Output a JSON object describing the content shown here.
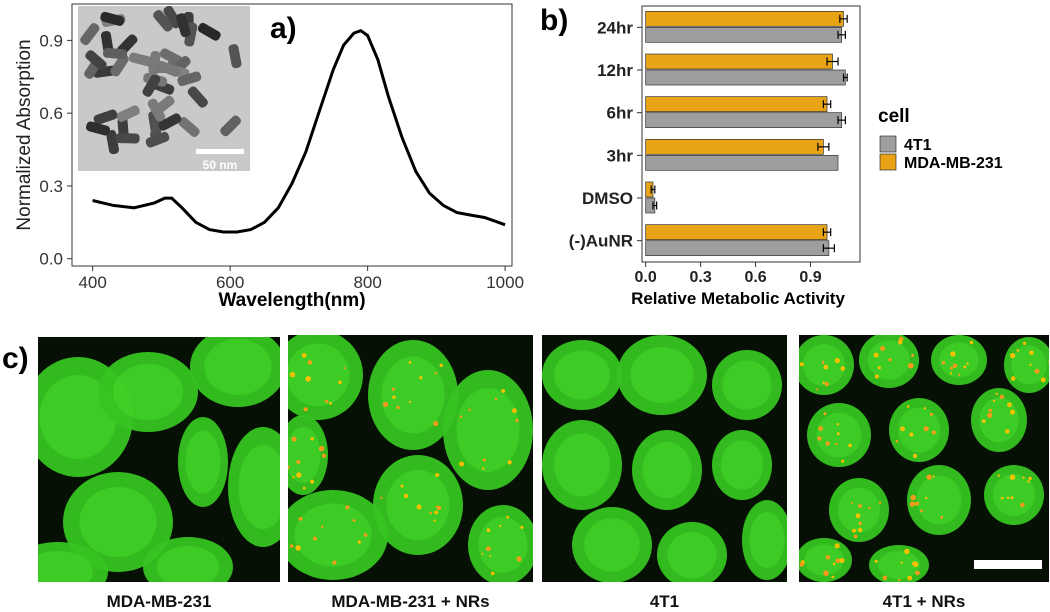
{
  "panel_labels": {
    "a": "a)",
    "b": "b)",
    "c": "c)"
  },
  "inset": {
    "scale_label": "50 nm"
  },
  "captions": [
    "MDA-MB-231",
    "MDA-MB-231 + NRs",
    "4T1",
    "4T1 + NRs"
  ],
  "colors": {
    "line": "#000000",
    "series_4t1": "#9e9e9e",
    "series_mda": "#e8a317",
    "cell_green": "#33cc22",
    "particle": "#ffbb00"
  },
  "chart_data": [
    {
      "type": "line",
      "xlabel": "Wavelength(nm)",
      "ylabel": "Normalized Absorption",
      "xlim": [
        370,
        1010
      ],
      "ylim": [
        -0.03,
        1.05
      ],
      "xticks": [
        400,
        600,
        800,
        1000
      ],
      "yticks": [
        0.0,
        0.3,
        0.6,
        0.9
      ],
      "ytick_labels": [
        "0.0",
        "0.3",
        "0.6",
        "0.9"
      ],
      "x": [
        400,
        430,
        460,
        490,
        505,
        515,
        530,
        550,
        570,
        590,
        610,
        630,
        650,
        670,
        690,
        710,
        730,
        750,
        765,
        780,
        790,
        800,
        815,
        830,
        850,
        870,
        890,
        910,
        930,
        950,
        970,
        990,
        1000
      ],
      "y": [
        0.24,
        0.22,
        0.21,
        0.23,
        0.25,
        0.25,
        0.21,
        0.15,
        0.12,
        0.11,
        0.11,
        0.12,
        0.15,
        0.21,
        0.31,
        0.44,
        0.61,
        0.78,
        0.88,
        0.93,
        0.94,
        0.92,
        0.82,
        0.67,
        0.5,
        0.36,
        0.27,
        0.22,
        0.19,
        0.18,
        0.17,
        0.15,
        0.14
      ]
    },
    {
      "type": "bar",
      "orientation": "horizontal",
      "xlabel": "Relative Metabolic Activity",
      "ylabel": "",
      "xlim": [
        -0.02,
        1.17
      ],
      "xticks": [
        0.0,
        0.3,
        0.6,
        0.9
      ],
      "xtick_labels": [
        "0.0",
        "0.3",
        "0.6",
        "0.9"
      ],
      "categories": [
        "24hr",
        "12hr",
        "6hr",
        "3hr",
        "DMSO",
        "(-)AuNR"
      ],
      "legend_title": "cell",
      "legend_position": "right",
      "series": [
        {
          "name": "MDA-MB-231",
          "values": [
            1.08,
            1.02,
            0.99,
            0.97,
            0.04,
            0.99
          ],
          "errors": [
            0.02,
            0.03,
            0.02,
            0.03,
            0.01,
            0.02
          ]
        },
        {
          "name": "4T1",
          "values": [
            1.07,
            1.09,
            1.07,
            1.05,
            0.05,
            1.0
          ],
          "errors": [
            0.02,
            0.01,
            0.02,
            0.0,
            0.01,
            0.03
          ]
        }
      ]
    }
  ]
}
